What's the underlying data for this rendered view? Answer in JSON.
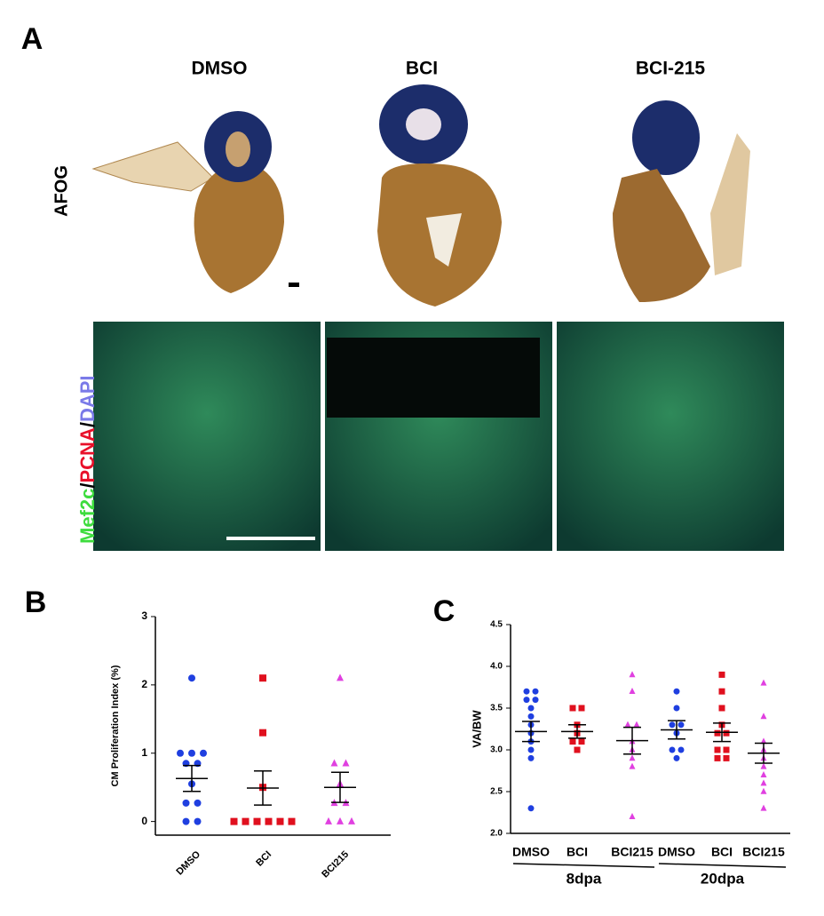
{
  "panel_labels": [
    "A",
    "B",
    "C"
  ],
  "panel_a": {
    "columns": [
      "DMSO",
      "BCI",
      "BCI-215"
    ],
    "row_label": "AFOG",
    "stain_label": [
      "Mef2c",
      "/",
      "PCNA",
      "/",
      "DAPI"
    ],
    "stain_colors": [
      "#3ddc3d",
      "#000000",
      "#e8102a",
      "#000000",
      "#7a7ae8"
    ]
  },
  "chart_data": [
    {
      "type": "dot",
      "y_label": "CM Proliferation Index (%)",
      "categories": [
        "DMSO",
        "BCI",
        "BCI215"
      ],
      "values": [
        [
          2.1,
          1.0,
          1.0,
          1.0,
          0.85,
          0.85,
          0.55,
          0.27,
          0.27,
          0,
          0
        ],
        [
          2.1,
          1.3,
          0.5,
          0,
          0,
          0,
          0,
          0,
          0
        ],
        [
          2.1,
          0.85,
          0.85,
          0.55,
          0.27,
          0.27,
          0,
          0,
          0
        ]
      ],
      "means": [
        0.63,
        0.49,
        0.5
      ],
      "sems": [
        0.19,
        0.25,
        0.22
      ],
      "colors": [
        "#1f3fe0",
        "#e0101e",
        "#e040e0"
      ],
      "markers": [
        "circle",
        "square",
        "triangle"
      ],
      "ylim": [
        -0.2,
        3
      ],
      "yticks": [
        0,
        1,
        2,
        3
      ]
    },
    {
      "type": "dot",
      "y_label": "VA/BW",
      "categories": [
        "DMSO",
        "BCI",
        "BCI215",
        "DMSO",
        "BCI",
        "BCI215"
      ],
      "groups": [
        "8dpa",
        "20dpa"
      ],
      "values": [
        [
          3.7,
          3.7,
          3.6,
          3.6,
          3.5,
          3.4,
          3.3,
          3.2,
          3.1,
          3.0,
          2.9,
          2.3
        ],
        [
          3.5,
          3.5,
          3.3,
          3.2,
          3.1,
          3.1,
          3.0
        ],
        [
          3.9,
          3.7,
          3.3,
          3.3,
          3.1,
          3.0,
          2.9,
          2.8,
          2.2
        ],
        [
          3.7,
          3.5,
          3.3,
          3.3,
          3.2,
          3.0,
          3.0,
          2.9
        ],
        [
          3.9,
          3.7,
          3.5,
          3.3,
          3.2,
          3.2,
          3.0,
          3.0,
          2.9,
          2.9
        ],
        [
          3.8,
          3.4,
          3.1,
          3.0,
          2.9,
          2.8,
          2.7,
          2.6,
          2.5,
          2.3
        ]
      ],
      "means": [
        3.22,
        3.22,
        3.11,
        3.24,
        3.21,
        2.96
      ],
      "sems": [
        0.12,
        0.08,
        0.16,
        0.11,
        0.11,
        0.12
      ],
      "colors": [
        "#1f3fe0",
        "#e0101e",
        "#e040e0",
        "#1f3fe0",
        "#e0101e",
        "#e040e0"
      ],
      "markers": [
        "circle",
        "square",
        "triangle",
        "circle",
        "square",
        "triangle"
      ],
      "ylim": [
        2,
        4.5
      ],
      "yticks": [
        {
          "value": 2,
          "label": "2.0"
        },
        {
          "value": 2.5,
          "label": "2.5"
        },
        {
          "value": 3,
          "label": "3.0"
        },
        {
          "value": 3.5,
          "label": "3.5"
        },
        {
          "value": 4,
          "label": "4.0"
        },
        {
          "value": 4.5,
          "label": "4.5"
        }
      ]
    }
  ]
}
